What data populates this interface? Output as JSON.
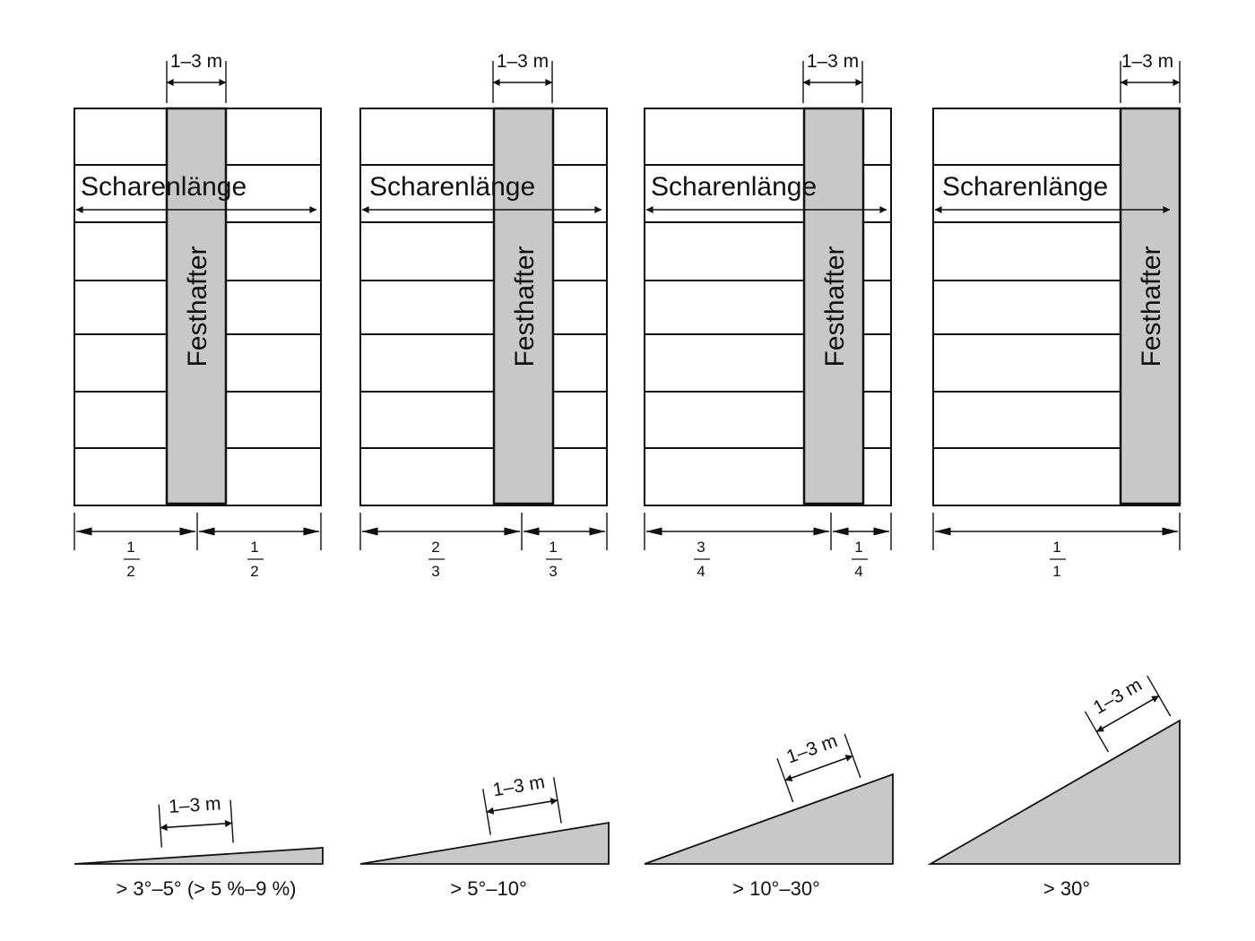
{
  "colors": {
    "line": "#111111",
    "fill": "#c8c8c8",
    "background": "#ffffff"
  },
  "panels": [
    {
      "id": "p1",
      "top_label": "1–3 m",
      "scharen_label": "Scharenlänge",
      "vertical_label": "Festhafter",
      "fractions": [
        {
          "num": "1",
          "den": "2"
        },
        {
          "num": "1",
          "den": "2"
        }
      ]
    },
    {
      "id": "p2",
      "top_label": "1–3 m",
      "scharen_label": "Scharenlänge",
      "vertical_label": "Festhafter",
      "fractions": [
        {
          "num": "2",
          "den": "3"
        },
        {
          "num": "1",
          "den": "3"
        }
      ]
    },
    {
      "id": "p3",
      "top_label": "1–3 m",
      "scharen_label": "Scharenlänge",
      "vertical_label": "Festhafter",
      "fractions": [
        {
          "num": "3",
          "den": "4"
        },
        {
          "num": "1",
          "den": "4"
        }
      ]
    },
    {
      "id": "p4",
      "top_label": "1–3 m",
      "scharen_label": "Scharenlänge",
      "vertical_label": "Festhafter",
      "fractions": [
        {
          "num": "1",
          "den": "1"
        }
      ]
    }
  ],
  "slopes": [
    {
      "id": "s1",
      "dim_label": "1–3 m",
      "angle_label": "> 3°–5° (> 5 %–9 %)"
    },
    {
      "id": "s2",
      "dim_label": "1–3 m",
      "angle_label": "> 5°–10°"
    },
    {
      "id": "s3",
      "dim_label": "1–3 m",
      "angle_label": "> 10°–30°"
    },
    {
      "id": "s4",
      "dim_label": "1–3 m",
      "angle_label": "> 30°"
    }
  ]
}
